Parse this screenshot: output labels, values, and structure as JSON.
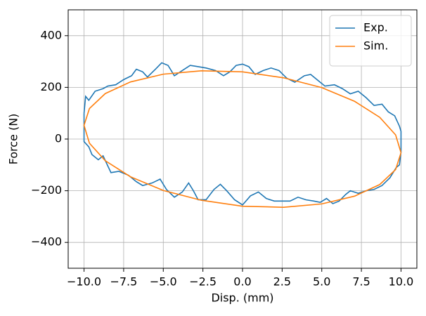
{
  "chart_data": {
    "type": "line",
    "xlabel": "Disp. (mm)",
    "ylabel": "Force (N)",
    "xlim": [
      -11,
      11
    ],
    "ylim": [
      -500,
      500
    ],
    "xticks": [
      {
        "value": -10,
        "label": "−10.0"
      },
      {
        "value": -7.5,
        "label": "−7.5"
      },
      {
        "value": -5,
        "label": "−5.0"
      },
      {
        "value": -2.5,
        "label": "−2.5"
      },
      {
        "value": 0,
        "label": "0.0"
      },
      {
        "value": 2.5,
        "label": "2.5"
      },
      {
        "value": 5,
        "label": "5.0"
      },
      {
        "value": 7.5,
        "label": "7.5"
      },
      {
        "value": 10,
        "label": "10.0"
      }
    ],
    "yticks": [
      {
        "value": -400,
        "label": "−400"
      },
      {
        "value": -200,
        "label": "−200"
      },
      0,
      200,
      400
    ],
    "grid": true,
    "legend": "upper right",
    "series": [
      {
        "name": "Exp.",
        "color": "#1f77b4",
        "x": [
          -10,
          -9.9,
          -9.7,
          -9.3,
          -8.8,
          -8.5,
          -8,
          -7.5,
          -7,
          -6.7,
          -6.3,
          -6,
          -5.5,
          -5.1,
          -4.7,
          -4.3,
          -3.8,
          -3.3,
          -2.8,
          -2.3,
          -1.7,
          -1.2,
          -0.8,
          -0.4,
          0,
          0.4,
          0.8,
          1.3,
          1.8,
          2.3,
          2.8,
          3.3,
          3.9,
          4.3,
          4.8,
          5.2,
          5.8,
          6.3,
          6.8,
          7.3,
          7.8,
          8.3,
          8.8,
          9.2,
          9.6,
          9.9,
          10,
          10,
          9.9,
          9.7,
          9.3,
          8.8,
          8.3,
          7.8,
          7.3,
          6.8,
          6.5,
          6.1,
          5.7,
          5.3,
          4.9,
          4.5,
          4,
          3.5,
          3,
          2.5,
          2,
          1.5,
          1,
          0.5,
          0,
          -0.5,
          -1,
          -1.4,
          -1.8,
          -2.3,
          -2.8,
          -3.1,
          -3.4,
          -3.8,
          -4.3,
          -4.8,
          -5.2,
          -5.7,
          -6.3,
          -6.7,
          -7.2,
          -7.8,
          -8.3,
          -8.8,
          -9.1,
          -9.5,
          -9.7,
          -10,
          -10
        ],
        "values": [
          100,
          165,
          150,
          185,
          195,
          205,
          210,
          230,
          245,
          270,
          260,
          240,
          270,
          295,
          285,
          245,
          265,
          285,
          280,
          275,
          265,
          245,
          260,
          285,
          290,
          280,
          250,
          265,
          275,
          265,
          235,
          220,
          245,
          250,
          225,
          205,
          210,
          195,
          175,
          185,
          160,
          130,
          135,
          105,
          90,
          50,
          30,
          -50,
          -100,
          -110,
          -150,
          -180,
          -195,
          -200,
          -210,
          -200,
          -215,
          -240,
          -250,
          -230,
          -245,
          -240,
          -235,
          -225,
          -240,
          -240,
          -240,
          -230,
          -205,
          -220,
          -255,
          -235,
          -200,
          -175,
          -195,
          -235,
          -235,
          -200,
          -170,
          -205,
          -225,
          -195,
          -155,
          -170,
          -180,
          -165,
          -140,
          -125,
          -130,
          -65,
          -80,
          -60,
          -30,
          -10,
          100
        ]
      },
      {
        "name": "Sim.",
        "color": "#ff7f0e",
        "x": [
          10,
          9.66,
          8.66,
          7.07,
          5,
          2.59,
          0,
          -2.59,
          -5,
          -7.07,
          -8.66,
          -9.66,
          -10,
          -9.66,
          -8.66,
          -7.07,
          -5,
          -2.59,
          0,
          2.59,
          5,
          7.07,
          8.66,
          9.66,
          10
        ],
        "values": [
          -53,
          16,
          84,
          146,
          199,
          237,
          260,
          264,
          251,
          221,
          176,
          118,
          53,
          -16,
          -84,
          -146,
          -199,
          -237,
          -260,
          -264,
          -251,
          -221,
          -176,
          -118,
          -53
        ]
      }
    ]
  }
}
